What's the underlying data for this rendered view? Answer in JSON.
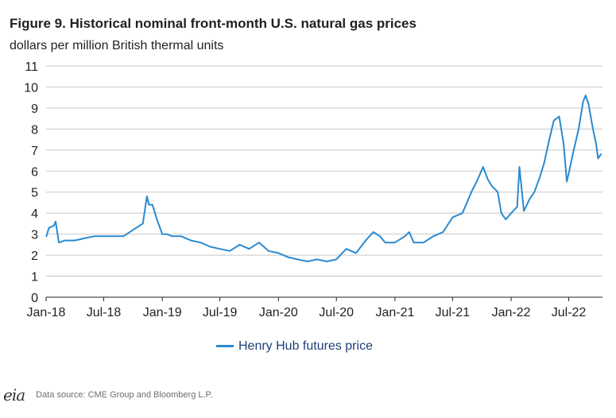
{
  "header": {
    "title": "Figure 9. Historical nominal front-month U.S. natural gas prices",
    "subtitle": "dollars per million British thermal units"
  },
  "footer": {
    "logo_text": "eia",
    "source": "Data source: CME Group and Bloomberg L.P."
  },
  "colors": {
    "series": "#2a8ad0",
    "grid": "#c8c8c8",
    "axis": "#231f20"
  },
  "chart_data": {
    "type": "line",
    "x_type": "date",
    "xlim": [
      "2018-01-01",
      "2022-10-15"
    ],
    "ylim": [
      0,
      11
    ],
    "y_ticks": [
      0,
      1,
      2,
      3,
      4,
      5,
      6,
      7,
      8,
      9,
      10,
      11
    ],
    "x_ticks": [
      {
        "label": "Jan-18",
        "date": "2018-01-01"
      },
      {
        "label": "Jul-18",
        "date": "2018-07-01"
      },
      {
        "label": "Jan-19",
        "date": "2019-01-01"
      },
      {
        "label": "Jul-19",
        "date": "2019-07-01"
      },
      {
        "label": "Jan-20",
        "date": "2020-01-01"
      },
      {
        "label": "Jul-20",
        "date": "2020-07-01"
      },
      {
        "label": "Jan-21",
        "date": "2021-01-01"
      },
      {
        "label": "Jul-21",
        "date": "2021-07-01"
      },
      {
        "label": "Jan-22",
        "date": "2022-01-01"
      },
      {
        "label": "Jul-22",
        "date": "2022-07-01"
      }
    ],
    "grid": "horizontal",
    "legend_position": "bottom",
    "series": [
      {
        "name": "Henry Hub futures price",
        "x": [
          "2018-01-02",
          "2018-01-10",
          "2018-01-25",
          "2018-01-31",
          "2018-02-10",
          "2018-03-01",
          "2018-04-01",
          "2018-05-01",
          "2018-06-01",
          "2018-07-01",
          "2018-08-01",
          "2018-09-01",
          "2018-10-01",
          "2018-11-01",
          "2018-11-14",
          "2018-11-20",
          "2018-12-01",
          "2018-12-15",
          "2019-01-01",
          "2019-01-15",
          "2019-02-01",
          "2019-03-01",
          "2019-04-01",
          "2019-05-01",
          "2019-06-01",
          "2019-07-01",
          "2019-08-01",
          "2019-09-01",
          "2019-10-01",
          "2019-11-01",
          "2019-12-01",
          "2020-01-01",
          "2020-02-01",
          "2020-03-01",
          "2020-04-01",
          "2020-05-01",
          "2020-06-01",
          "2020-07-01",
          "2020-08-01",
          "2020-09-01",
          "2020-10-01",
          "2020-10-25",
          "2020-11-15",
          "2020-12-01",
          "2021-01-01",
          "2021-02-01",
          "2021-02-15",
          "2021-03-01",
          "2021-04-01",
          "2021-05-01",
          "2021-06-01",
          "2021-07-01",
          "2021-08-01",
          "2021-09-01",
          "2021-09-15",
          "2021-10-05",
          "2021-10-20",
          "2021-11-01",
          "2021-11-20",
          "2021-12-01",
          "2021-12-15",
          "2022-01-01",
          "2022-01-20",
          "2022-01-27",
          "2022-02-10",
          "2022-03-01",
          "2022-03-15",
          "2022-04-01",
          "2022-04-15",
          "2022-05-01",
          "2022-05-15",
          "2022-06-01",
          "2022-06-15",
          "2022-06-25",
          "2022-07-01",
          "2022-07-15",
          "2022-08-01",
          "2022-08-15",
          "2022-08-23",
          "2022-09-01",
          "2022-09-15",
          "2022-09-25",
          "2022-10-01",
          "2022-10-10"
        ],
        "y": [
          2.9,
          3.3,
          3.4,
          3.6,
          2.6,
          2.7,
          2.7,
          2.8,
          2.9,
          2.9,
          2.9,
          2.9,
          3.2,
          3.5,
          4.8,
          4.4,
          4.4,
          3.7,
          3.0,
          3.0,
          2.9,
          2.9,
          2.7,
          2.6,
          2.4,
          2.3,
          2.2,
          2.5,
          2.3,
          2.6,
          2.2,
          2.1,
          1.9,
          1.8,
          1.7,
          1.8,
          1.7,
          1.8,
          2.3,
          2.1,
          2.7,
          3.1,
          2.9,
          2.6,
          2.6,
          2.9,
          3.1,
          2.6,
          2.6,
          2.9,
          3.1,
          3.8,
          4.0,
          5.1,
          5.5,
          6.2,
          5.6,
          5.3,
          5.0,
          4.0,
          3.7,
          4.0,
          4.3,
          6.2,
          4.1,
          4.7,
          5.0,
          5.7,
          6.4,
          7.5,
          8.4,
          8.6,
          7.3,
          5.5,
          5.9,
          6.9,
          8.0,
          9.3,
          9.6,
          9.2,
          8.0,
          7.3,
          6.6,
          6.8
        ]
      }
    ]
  }
}
